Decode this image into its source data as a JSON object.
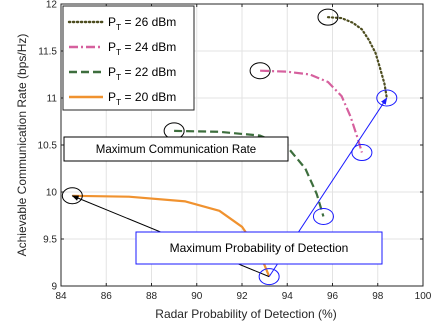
{
  "chart_data": {
    "type": "line",
    "xlabel": "Radar Probability of Detection (%)",
    "ylabel": "Achievable Communication Rate (bps/Hz)",
    "xlim": [
      84,
      100
    ],
    "ylim": [
      9,
      12
    ],
    "xticks": [
      "84",
      "86",
      "88",
      "90",
      "92",
      "94",
      "96",
      "98",
      "100"
    ],
    "yticks": [
      "9",
      "9.5",
      "10",
      "10.5",
      "11",
      "11.5",
      "12"
    ],
    "grid": true,
    "legend_position": "top-left",
    "series": [
      {
        "name": "P_T = 26 dBm",
        "legend_main": "P",
        "legend_sub": "T",
        "legend_tail": " = 26 dBm",
        "color": "#4d4d1f",
        "style": "dotted",
        "x": [
          95.8,
          96.4,
          96.9,
          97.3,
          97.6,
          97.9,
          98.1,
          98.3,
          98.4
        ],
        "y": [
          11.86,
          11.85,
          11.8,
          11.73,
          11.62,
          11.48,
          11.32,
          11.15,
          11.0
        ]
      },
      {
        "name": "P_T = 24 dBm",
        "legend_main": "P",
        "legend_sub": "T",
        "legend_tail": " = 24 dBm",
        "color": "#d6609e",
        "style": "dashdot",
        "x": [
          92.8,
          94.0,
          95.0,
          95.8,
          96.4,
          96.8,
          97.1,
          97.3
        ],
        "y": [
          11.29,
          11.28,
          11.25,
          11.17,
          11.02,
          10.8,
          10.58,
          10.42
        ]
      },
      {
        "name": "P_T = 22 dBm",
        "legend_main": "P",
        "legend_sub": "T",
        "legend_tail": " = 22 dBm",
        "color": "#3d6e3d",
        "style": "dashed",
        "x": [
          89.0,
          91.0,
          92.8,
          94.0,
          94.8,
          95.3,
          95.6
        ],
        "y": [
          10.65,
          10.64,
          10.6,
          10.48,
          10.25,
          9.98,
          9.74
        ]
      },
      {
        "name": "P_T = 20 dBm",
        "legend_main": "P",
        "legend_sub": "T",
        "legend_tail": " = 20 dBm",
        "color": "#f0922f",
        "style": "solid",
        "x": [
          84.5,
          87.0,
          89.5,
          91.0,
          92.0,
          92.6,
          93.0,
          93.2
        ],
        "y": [
          9.96,
          9.95,
          9.9,
          9.8,
          9.63,
          9.42,
          9.22,
          9.1
        ]
      }
    ],
    "annotations": [
      {
        "label": "Maximum Communication Rate",
        "color": "#000000",
        "arrow_from": [
          93.2,
          9.1
        ],
        "arrow_to": [
          84.5,
          9.96
        ],
        "points": [
          [
            95.8,
            11.86
          ],
          [
            92.8,
            11.29
          ],
          [
            89.0,
            10.65
          ],
          [
            84.5,
            9.96
          ]
        ]
      },
      {
        "label": "Maximum Probability of Detection",
        "color": "#1a1aff",
        "arrow_from": [
          93.2,
          9.1
        ],
        "arrow_to": [
          98.4,
          11.0
        ],
        "points": [
          [
            98.4,
            11.0
          ],
          [
            97.3,
            10.42
          ],
          [
            95.6,
            9.74
          ],
          [
            93.2,
            9.1
          ]
        ]
      }
    ]
  }
}
